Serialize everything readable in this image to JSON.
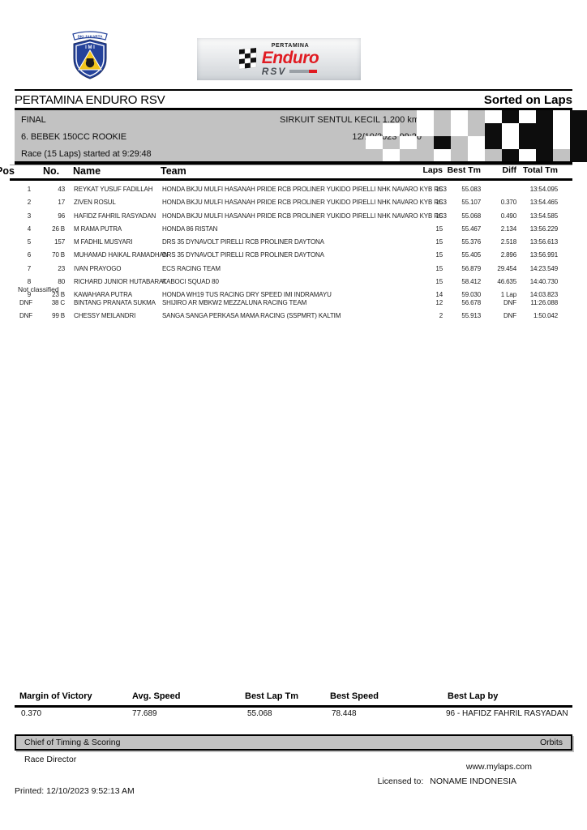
{
  "header": {
    "title": "PERTAMINA ENDURO RSV",
    "sorted_on": "Sorted on Laps",
    "imi_logo": {
      "ribbon": "DKI JAKARTA",
      "letters": "I M I"
    },
    "banner": {
      "brand": "PERTAMINA",
      "title": "Enduro",
      "subtitle": "RSV"
    }
  },
  "info": {
    "session": "FINAL",
    "circuit": "SIRKUIT SENTUL KECIL 1.200 km",
    "class_name": "6. BEBEK 150CC ROOKIE",
    "datetime": "12/10/2023 09:20",
    "race_info": "Race (15 Laps) started at 9:29:48",
    "checker_pattern": [
      "gggwgwgwbwbwb",
      "gwgwgwgbwbbwb",
      "wgwgbgwbwbbwb",
      "gwggwgwgbwbgb"
    ]
  },
  "table": {
    "columns": {
      "pos": "Pos",
      "no": "No.",
      "name": "Name",
      "team": "Team",
      "laps": "Laps",
      "best": "Best Tm",
      "diff": "Diff",
      "total": "Total Tm"
    },
    "rows": [
      {
        "pos": "1",
        "no": "43",
        "name": "REYKAT YUSUF FADILLAH",
        "team": "HONDA BKJU MULFI HASANAH PRIDE RCB PROLINER YUKIDO PIRELLI NHK NAVARO KYB RC3",
        "laps": "15",
        "best": "55.083",
        "diff": "",
        "total": "13:54.095"
      },
      {
        "pos": "2",
        "no": "17",
        "name": "ZIVEN ROSUL",
        "team": "HONDA BKJU MULFI HASANAH PRIDE RCB PROLINER YUKIDO PIRELLI NHK NAVARO KYB RC3",
        "laps": "15",
        "best": "55.107",
        "diff": "0.370",
        "total": "13:54.465"
      },
      {
        "pos": "3",
        "no": "96",
        "name": "HAFIDZ FAHRIL RASYADAN",
        "team": "HONDA BKJU MULFI HASANAH PRIDE RCB PROLINER YUKIDO PIRELLI NHK NAVARO KYB RC3",
        "laps": "15",
        "best": "55.068",
        "diff": "0.490",
        "total": "13:54.585"
      },
      {
        "pos": "4",
        "no": "26 B",
        "name": "M RAMA PUTRA",
        "team": "HONDA 86 RISTAN",
        "laps": "15",
        "best": "55.467",
        "diff": "2.134",
        "total": "13:56.229"
      },
      {
        "pos": "5",
        "no": "157",
        "name": "M FADHIL MUSYARI",
        "team": "DRS 35 DYNAVOLT PIRELLI RCB PROLINER DAYTONA",
        "laps": "15",
        "best": "55.376",
        "diff": "2.518",
        "total": "13:56.613"
      },
      {
        "pos": "6",
        "no": "70 B",
        "name": "MUHAMAD HAIKAL RAMADHAN",
        "team": "DRS 35 DYNAVOLT PIRELLI RCB PROLINER DAYTONA",
        "laps": "15",
        "best": "55.405",
        "diff": "2.896",
        "total": "13:56.991"
      },
      {
        "pos": "7",
        "no": "23",
        "name": "IVAN PRAYOGO",
        "team": "ECS RACING TEAM",
        "laps": "15",
        "best": "56.879",
        "diff": "29.454",
        "total": "14:23.549"
      },
      {
        "pos": "8",
        "no": "80",
        "name": "RICHARD JUNIOR HUTABARAT",
        "team": "KABOCI SQUAD 80",
        "laps": "15",
        "best": "58.412",
        "diff": "46.635",
        "total": "14:40.730"
      },
      {
        "pos": "9",
        "no": "23 B",
        "name": "KAWAHARA PUTRA",
        "team": "HONDA WH19 TUS RACING DRY SPEED IMI INDRAMAYU",
        "laps": "14",
        "best": "59.030",
        "diff": "1 Lap",
        "total": "14:03.823"
      }
    ],
    "not_classified_label": "Not classified",
    "not_classified": [
      {
        "pos": "DNF",
        "no": "38 C",
        "name": "BINTANG PRANATA SUKMA",
        "team": "SHIJIRO AR MBKW2 MEZZALUNA RACING TEAM",
        "laps": "12",
        "best": "56.678",
        "diff": "DNF",
        "total": "11:26.088"
      },
      {
        "pos": "DNF",
        "no": "99 B",
        "name": "CHESSY MEILANDRI",
        "team": "SANGA SANGA PERKASA  MAMA RACING (SSPMRT) KALTIM",
        "laps": "2",
        "best": "55.913",
        "diff": "DNF",
        "total": "1:50.042"
      }
    ]
  },
  "summary": {
    "items": [
      {
        "label": "Margin of Victory",
        "value": "0.370"
      },
      {
        "label": "Avg. Speed",
        "value": "77.689"
      },
      {
        "label": "Best Lap Tm",
        "value": "55.068"
      },
      {
        "label": "Best Speed",
        "value": "78.448"
      },
      {
        "label": "Best Lap by",
        "value": "96 - HAFIDZ FAHRIL RASYADAN"
      }
    ]
  },
  "footer": {
    "timing_label": "Chief of Timing & Scoring",
    "software": "Orbits",
    "race_director": "Race Director",
    "website": "www.mylaps.com",
    "licensed_label": "Licensed to:",
    "licensed_to": "NONAME INDONESIA",
    "printed": "Printed: 12/10/2023 9:52:13 AM"
  },
  "colors": {
    "box_grey": "#c2c2c2",
    "enduro_red": "#e01b22",
    "imi_blue": "#25439b",
    "imi_yellow": "#f2c51d"
  }
}
